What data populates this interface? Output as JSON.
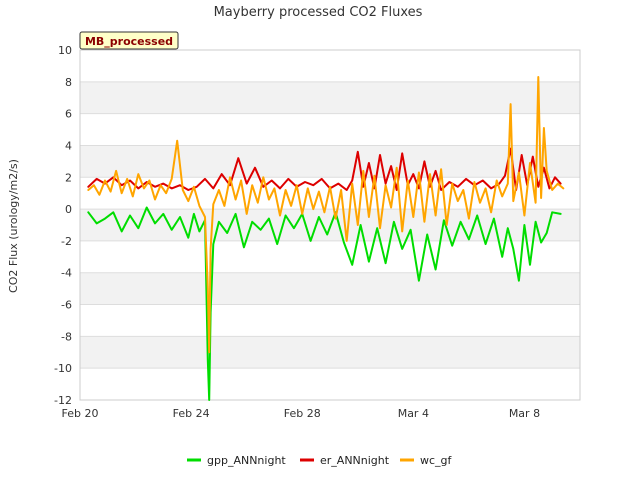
{
  "chart_data": {
    "type": "line",
    "title": "Mayberry processed CO2 Fluxes",
    "xlabel": "",
    "ylabel": "CO2 Flux (urology/m2/s)",
    "badge": "MB_processed",
    "ylim": [
      -12,
      10
    ],
    "yticks": [
      -12,
      -10,
      -8,
      -6,
      -4,
      -2,
      0,
      2,
      4,
      6,
      8,
      10
    ],
    "xlim": [
      0,
      18
    ],
    "xtick_positions": [
      0,
      4,
      8,
      12,
      16
    ],
    "xtick_labels": [
      "Feb 20",
      "Feb 24",
      "Feb 28",
      "Mar 4",
      "Mar 8"
    ],
    "series": [
      {
        "name": "gpp_ANNnight",
        "color": "#00dd00",
        "x": [
          0.3,
          0.6,
          0.9,
          1.2,
          1.5,
          1.8,
          2.1,
          2.4,
          2.7,
          3.0,
          3.3,
          3.6,
          3.9,
          4.1,
          4.3,
          4.5,
          4.6,
          4.65,
          4.7,
          4.8,
          5.0,
          5.3,
          5.6,
          5.9,
          6.2,
          6.5,
          6.8,
          7.1,
          7.4,
          7.7,
          8.0,
          8.3,
          8.6,
          8.9,
          9.2,
          9.5,
          9.8,
          10.1,
          10.4,
          10.7,
          11.0,
          11.3,
          11.6,
          11.9,
          12.2,
          12.5,
          12.8,
          13.1,
          13.4,
          13.7,
          14.0,
          14.3,
          14.6,
          14.9,
          15.2,
          15.4,
          15.6,
          15.8,
          16.0,
          16.2,
          16.4,
          16.6,
          16.8,
          17.0,
          17.3
        ],
        "values": [
          -0.2,
          -0.9,
          -0.6,
          -0.2,
          -1.4,
          -0.4,
          -1.2,
          0.1,
          -0.9,
          -0.3,
          -1.3,
          -0.5,
          -1.8,
          -0.3,
          -1.4,
          -0.7,
          -9.5,
          -12.0,
          -6.5,
          -2.2,
          -0.8,
          -1.5,
          -0.3,
          -2.4,
          -0.8,
          -1.3,
          -0.6,
          -2.2,
          -0.4,
          -1.2,
          -0.3,
          -2.0,
          -0.5,
          -1.6,
          -0.2,
          -2.1,
          -3.5,
          -1.0,
          -3.3,
          -1.2,
          -3.4,
          -0.8,
          -2.5,
          -1.3,
          -4.5,
          -1.6,
          -3.8,
          -0.7,
          -2.3,
          -0.8,
          -1.9,
          -0.4,
          -2.2,
          -0.6,
          -3.0,
          -1.2,
          -2.5,
          -4.5,
          -1.0,
          -3.5,
          -0.8,
          -2.1,
          -1.5,
          -0.2,
          -0.3
        ]
      },
      {
        "name": "er_ANNnight",
        "color": "#dd0000",
        "x": [
          0.3,
          0.6,
          0.9,
          1.2,
          1.5,
          1.8,
          2.1,
          2.4,
          2.7,
          3.0,
          3.3,
          3.6,
          3.9,
          4.2,
          4.5,
          4.8,
          5.1,
          5.4,
          5.7,
          6.0,
          6.3,
          6.6,
          6.9,
          7.2,
          7.5,
          7.8,
          8.1,
          8.4,
          8.7,
          9.0,
          9.3,
          9.6,
          9.8,
          10.0,
          10.2,
          10.4,
          10.6,
          10.8,
          11.0,
          11.2,
          11.4,
          11.6,
          11.8,
          12.0,
          12.2,
          12.4,
          12.6,
          12.8,
          13.0,
          13.3,
          13.6,
          13.9,
          14.2,
          14.5,
          14.8,
          15.1,
          15.3,
          15.5,
          15.7,
          15.9,
          16.1,
          16.3,
          16.5,
          16.7,
          16.9,
          17.1,
          17.3
        ],
        "values": [
          1.4,
          1.9,
          1.6,
          2.0,
          1.5,
          1.8,
          1.3,
          1.7,
          1.4,
          1.6,
          1.3,
          1.5,
          1.2,
          1.4,
          1.9,
          1.3,
          2.2,
          1.5,
          3.2,
          1.6,
          2.6,
          1.4,
          1.8,
          1.3,
          1.9,
          1.4,
          1.7,
          1.5,
          1.9,
          1.3,
          1.6,
          1.2,
          1.8,
          3.6,
          1.4,
          2.9,
          1.3,
          3.4,
          1.6,
          2.7,
          1.2,
          3.5,
          1.5,
          2.2,
          1.3,
          3.0,
          1.4,
          2.4,
          1.2,
          1.7,
          1.4,
          1.9,
          1.5,
          1.8,
          1.3,
          1.6,
          2.1,
          3.8,
          1.2,
          3.4,
          1.5,
          3.3,
          1.4,
          2.6,
          1.3,
          2.0,
          1.6
        ]
      },
      {
        "name": "wc_gf",
        "color": "#ffa500",
        "x": [
          0.3,
          0.5,
          0.7,
          0.9,
          1.1,
          1.3,
          1.5,
          1.7,
          1.9,
          2.1,
          2.3,
          2.5,
          2.7,
          2.9,
          3.1,
          3.3,
          3.5,
          3.7,
          3.9,
          4.1,
          4.3,
          4.5,
          4.6,
          4.65,
          4.7,
          4.8,
          5.0,
          5.2,
          5.4,
          5.6,
          5.8,
          6.0,
          6.2,
          6.4,
          6.6,
          6.8,
          7.0,
          7.2,
          7.4,
          7.6,
          7.8,
          8.0,
          8.2,
          8.4,
          8.6,
          8.8,
          9.0,
          9.2,
          9.4,
          9.6,
          9.8,
          10.0,
          10.2,
          10.4,
          10.6,
          10.8,
          11.0,
          11.2,
          11.4,
          11.6,
          11.8,
          12.0,
          12.2,
          12.4,
          12.6,
          12.8,
          13.0,
          13.2,
          13.4,
          13.6,
          13.8,
          14.0,
          14.2,
          14.4,
          14.6,
          14.8,
          15.0,
          15.2,
          15.4,
          15.5,
          15.6,
          15.8,
          16.0,
          16.2,
          16.4,
          16.5,
          16.6,
          16.7,
          16.8,
          17.0,
          17.2,
          17.4
        ],
        "values": [
          1.2,
          1.5,
          0.9,
          1.8,
          1.1,
          2.4,
          1.0,
          1.9,
          0.8,
          2.2,
          1.3,
          1.8,
          0.6,
          1.5,
          1.0,
          1.9,
          4.3,
          1.2,
          0.5,
          1.4,
          0.2,
          -0.5,
          -5.0,
          -9.0,
          -2.5,
          0.3,
          1.2,
          0.2,
          2.0,
          0.6,
          1.8,
          -0.3,
          1.5,
          0.4,
          2.0,
          0.6,
          1.3,
          -0.4,
          1.2,
          0.2,
          1.5,
          -0.3,
          1.3,
          0.0,
          1.1,
          -0.2,
          1.4,
          -0.6,
          1.2,
          -2.0,
          1.6,
          -1.0,
          2.4,
          -0.5,
          2.1,
          -1.2,
          1.5,
          0.1,
          2.6,
          -1.4,
          1.8,
          -0.5,
          2.3,
          -0.8,
          2.2,
          -0.4,
          2.5,
          -1.0,
          1.6,
          0.5,
          1.2,
          -0.6,
          1.7,
          0.4,
          1.3,
          -0.2,
          1.8,
          0.8,
          1.6,
          6.6,
          0.5,
          2.3,
          -0.4,
          2.9,
          0.4,
          8.3,
          0.7,
          5.1,
          2.4,
          1.2,
          1.6,
          1.3
        ]
      }
    ],
    "legend_position": "bottom-center"
  }
}
